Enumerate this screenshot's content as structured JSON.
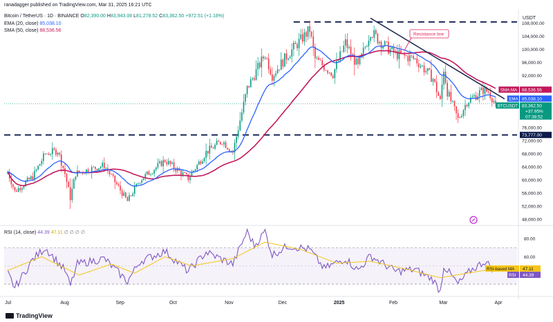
{
  "header": {
    "publisher": "ranadagger published on TradingView.com, Mar 31, 2025 16:21 UTC",
    "symbol": "Bitcoin / TetherUS · 1D · BINANCE",
    "o_label": "O",
    "o_value": "82,390.00",
    "h_label": "H",
    "h_value": "83,943.08",
    "l_label": "L",
    "l_value": "81,278.52",
    "c_label": "C",
    "c_value": "83,362.50",
    "change": "+972.51 (+1.18%)",
    "ema_legend": "EMA (20, close)",
    "ema_value": "85,038.10",
    "sma_legend": "SMA (50, close)",
    "sma_value": "88,536.56",
    "rsi_legend": "RSI (14, close)",
    "rsi_value": "44.39",
    "rsi_ma_value": "47.11",
    "rsi_zeros": "∅ ∅ ∅ ∅",
    "currency": "USDT",
    "footer_logo": "TradingView"
  },
  "colors": {
    "up": "#089981",
    "down": "#f23645",
    "ema": "#2962ff",
    "sma": "#c2185b",
    "rsi": "#7e57c2",
    "rsi_ma": "#f5c518",
    "level": "#0d1b4b",
    "trendline": "#1e2a52",
    "annotation": "#e0245e"
  },
  "chart_data": [
    {
      "type": "candlestick",
      "title": "Bitcoin / TetherUS · 1D · BINANCE",
      "xlabel": "",
      "ylabel": "USDT",
      "x_tick_labels": [
        "Jul",
        "Aug",
        "Sep",
        "Oct",
        "Nov",
        "Dec",
        "2025",
        "Feb",
        "Mar",
        "Apr"
      ],
      "y_tick_labels": [
        108000,
        104000,
        100000,
        96000,
        92000,
        76000,
        72000,
        68000,
        64000,
        60000,
        56000,
        52000,
        48000
      ],
      "ylim": [
        46500,
        110000
      ],
      "grid": false,
      "anchors": [
        {
          "date": "2024-07-01",
          "price": 62500
        },
        {
          "date": "2024-07-05",
          "price": 56500
        },
        {
          "date": "2024-07-15",
          "price": 61000
        },
        {
          "date": "2024-07-22",
          "price": 68000
        },
        {
          "date": "2024-07-29",
          "price": 69000
        },
        {
          "date": "2024-08-02",
          "price": 62000
        },
        {
          "date": "2024-08-05",
          "price": 54500
        },
        {
          "date": "2024-08-08",
          "price": 62000
        },
        {
          "date": "2024-08-24",
          "price": 64500
        },
        {
          "date": "2024-09-06",
          "price": 53500
        },
        {
          "date": "2024-09-13",
          "price": 60000
        },
        {
          "date": "2024-09-27",
          "price": 66000
        },
        {
          "date": "2024-10-10",
          "price": 60500
        },
        {
          "date": "2024-10-20",
          "price": 68500
        },
        {
          "date": "2024-10-29",
          "price": 72000
        },
        {
          "date": "2024-11-04",
          "price": 68500
        },
        {
          "date": "2024-11-12",
          "price": 88000
        },
        {
          "date": "2024-11-22",
          "price": 98500
        },
        {
          "date": "2024-11-26",
          "price": 92000
        },
        {
          "date": "2024-12-05",
          "price": 98500
        },
        {
          "date": "2024-12-17",
          "price": 106000
        },
        {
          "date": "2024-12-20",
          "price": 97000
        },
        {
          "date": "2024-12-30",
          "price": 92500
        },
        {
          "date": "2025-01-06",
          "price": 102000
        },
        {
          "date": "2025-01-13",
          "price": 94500
        },
        {
          "date": "2025-01-20",
          "price": 105500
        },
        {
          "date": "2025-01-27",
          "price": 101500
        },
        {
          "date": "2025-02-03",
          "price": 98500
        },
        {
          "date": "2025-02-14",
          "price": 97000
        },
        {
          "date": "2025-02-24",
          "price": 91000
        },
        {
          "date": "2025-02-28",
          "price": 84000
        },
        {
          "date": "2025-03-02",
          "price": 94000
        },
        {
          "date": "2025-03-04",
          "price": 87000
        },
        {
          "date": "2025-03-10",
          "price": 78500
        },
        {
          "date": "2025-03-15",
          "price": 84000
        },
        {
          "date": "2025-03-24",
          "price": 87500
        },
        {
          "date": "2025-03-27",
          "price": 87000
        },
        {
          "date": "2025-03-31",
          "price": 83362.5
        }
      ],
      "levels": [
        {
          "price": 108353,
          "label": ""
        },
        {
          "price": 73777,
          "label": "73,777.00"
        }
      ],
      "trendline": {
        "from": {
          "date": "2025-01-20",
          "price": 109500
        },
        "to": {
          "date": "2025-04-05",
          "price": 84800
        }
      },
      "annotation": "Resistance line",
      "price_labels": [
        {
          "name": "SMA:MA",
          "value": "88,536.56"
        },
        {
          "name": "EMA",
          "value": "85,038.10"
        },
        {
          "name": "BTCUSDT",
          "value": "83,362.50",
          "extra": [
            "+37.95%",
            "07:38:52"
          ]
        }
      ]
    },
    {
      "type": "line",
      "title": "RSI (14, close)",
      "ylim": [
        18,
        92
      ],
      "y_tick_labels": [
        80.0,
        60.0,
        40.0
      ],
      "band": [
        30,
        70
      ],
      "rsi_anchors": [
        {
          "date": "2024-07-01",
          "value": 42
        },
        {
          "date": "2024-07-05",
          "value": 26
        },
        {
          "date": "2024-07-15",
          "value": 57
        },
        {
          "date": "2024-07-22",
          "value": 70
        },
        {
          "date": "2024-08-02",
          "value": 45
        },
        {
          "date": "2024-08-05",
          "value": 28
        },
        {
          "date": "2024-08-09",
          "value": 52
        },
        {
          "date": "2024-08-24",
          "value": 58
        },
        {
          "date": "2024-09-06",
          "value": 33
        },
        {
          "date": "2024-09-13",
          "value": 55
        },
        {
          "date": "2024-09-27",
          "value": 66
        },
        {
          "date": "2024-10-10",
          "value": 44
        },
        {
          "date": "2024-10-20",
          "value": 65
        },
        {
          "date": "2024-11-04",
          "value": 52
        },
        {
          "date": "2024-11-12",
          "value": 88
        },
        {
          "date": "2024-11-16",
          "value": 72
        },
        {
          "date": "2024-11-22",
          "value": 88
        },
        {
          "date": "2024-11-26",
          "value": 62
        },
        {
          "date": "2024-12-05",
          "value": 72
        },
        {
          "date": "2024-12-17",
          "value": 68
        },
        {
          "date": "2024-12-25",
          "value": 47
        },
        {
          "date": "2025-01-06",
          "value": 58
        },
        {
          "date": "2025-01-13",
          "value": 45
        },
        {
          "date": "2025-01-20",
          "value": 61
        },
        {
          "date": "2025-02-03",
          "value": 44
        },
        {
          "date": "2025-02-14",
          "value": 46
        },
        {
          "date": "2025-02-24",
          "value": 35
        },
        {
          "date": "2025-02-28",
          "value": 22
        },
        {
          "date": "2025-03-02",
          "value": 50
        },
        {
          "date": "2025-03-10",
          "value": 30
        },
        {
          "date": "2025-03-17",
          "value": 45
        },
        {
          "date": "2025-03-25",
          "value": 55
        },
        {
          "date": "2025-03-31",
          "value": 44.39
        }
      ],
      "rsi_ma_anchors": [
        {
          "date": "2024-07-01",
          "value": 45
        },
        {
          "date": "2024-07-20",
          "value": 60
        },
        {
          "date": "2024-08-10",
          "value": 40
        },
        {
          "date": "2024-08-28",
          "value": 52
        },
        {
          "date": "2024-09-10",
          "value": 42
        },
        {
          "date": "2024-09-27",
          "value": 60
        },
        {
          "date": "2024-10-12",
          "value": 50
        },
        {
          "date": "2024-11-04",
          "value": 58
        },
        {
          "date": "2024-11-22",
          "value": 76
        },
        {
          "date": "2024-12-12",
          "value": 68
        },
        {
          "date": "2025-01-01",
          "value": 53
        },
        {
          "date": "2025-01-20",
          "value": 55
        },
        {
          "date": "2025-02-10",
          "value": 46
        },
        {
          "date": "2025-02-28",
          "value": 37
        },
        {
          "date": "2025-03-15",
          "value": 42
        },
        {
          "date": "2025-03-31",
          "value": 47.11
        }
      ],
      "value_labels": [
        {
          "name": "RSI-based MA",
          "value": "47.11"
        },
        {
          "name": "RSI",
          "value": "44.39"
        }
      ]
    }
  ]
}
